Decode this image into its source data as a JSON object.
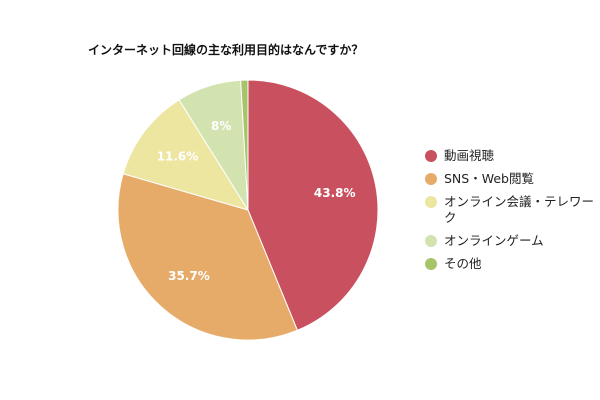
{
  "chart_data": {
    "type": "pie",
    "title": "インターネット回線の主な利用目的はなんですか？",
    "categories": [
      "動画視聴",
      "SNS・Web閲覧",
      "オンライン会議・テレワーク",
      "オンラインゲーム",
      "その他"
    ],
    "values": [
      43.8,
      35.7,
      11.6,
      8,
      0.9
    ],
    "data_labels": [
      "43.8%",
      "35.7%",
      "11.6%",
      "8%",
      ""
    ],
    "colors": [
      "#c9515f",
      "#e6ab68",
      "#ede6a0",
      "#d3e3b0",
      "#a8c46a"
    ],
    "legend_position": "right",
    "start_angle": "top",
    "direction": "clockwise"
  }
}
